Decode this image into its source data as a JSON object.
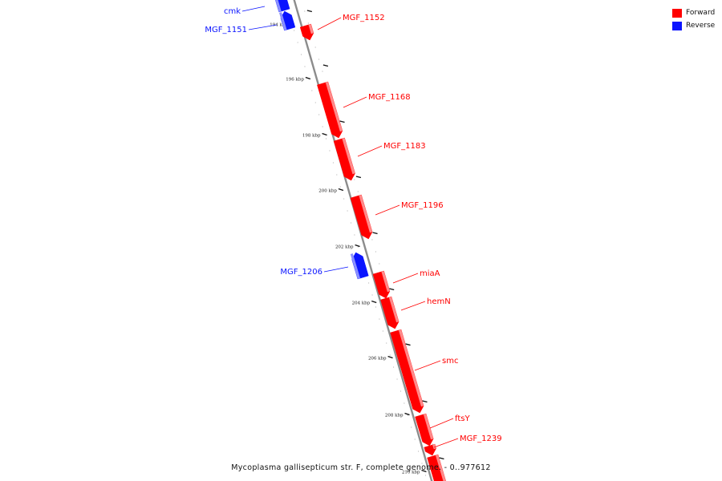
{
  "title": "Mycoplasma gallisepticum str. F, complete genome. - 0..977612",
  "legend": [
    {
      "key": "forward",
      "label": "Forward",
      "color": "#ff0000"
    },
    {
      "key": "reverse",
      "label": "Reverse",
      "color": "#0a14ff"
    }
  ],
  "colors": {
    "forward": "#ff0000",
    "forward_light": "#ff8a8a",
    "reverse": "#0a14ff",
    "reverse_light": "#8a90ff",
    "axis": "#8c8c8c",
    "tick": "#111111",
    "dot": "#999999"
  },
  "scale_ticks": [
    {
      "label": "194 kbp",
      "kbp": 194
    },
    {
      "label": "196 kbp",
      "kbp": 196
    },
    {
      "label": "198 kbp",
      "kbp": 198
    },
    {
      "label": "200 kbp",
      "kbp": 200
    },
    {
      "label": "202 kbp",
      "kbp": 202
    },
    {
      "label": "204 kbp",
      "kbp": 204
    },
    {
      "label": "206 kbp",
      "kbp": 206
    },
    {
      "label": "208 kbp",
      "kbp": 208
    },
    {
      "label": "210 kbp",
      "kbp": 210
    }
  ],
  "genes": [
    {
      "name": "cmk",
      "strand": "reverse"
    },
    {
      "name": "MGF_1151",
      "strand": "reverse"
    },
    {
      "name": "MGF_1152",
      "strand": "forward"
    },
    {
      "name": "MGF_1168",
      "strand": "forward"
    },
    {
      "name": "MGF_1183",
      "strand": "forward"
    },
    {
      "name": "MGF_1196",
      "strand": "forward"
    },
    {
      "name": "MGF_1206",
      "strand": "reverse"
    },
    {
      "name": "miaA",
      "strand": "forward"
    },
    {
      "name": "hemN",
      "strand": "forward"
    },
    {
      "name": "smc",
      "strand": "forward"
    },
    {
      "name": "ftsY",
      "strand": "forward"
    },
    {
      "name": "MGF_1239",
      "strand": "forward"
    },
    {
      "name": "",
      "strand": "forward"
    }
  ]
}
